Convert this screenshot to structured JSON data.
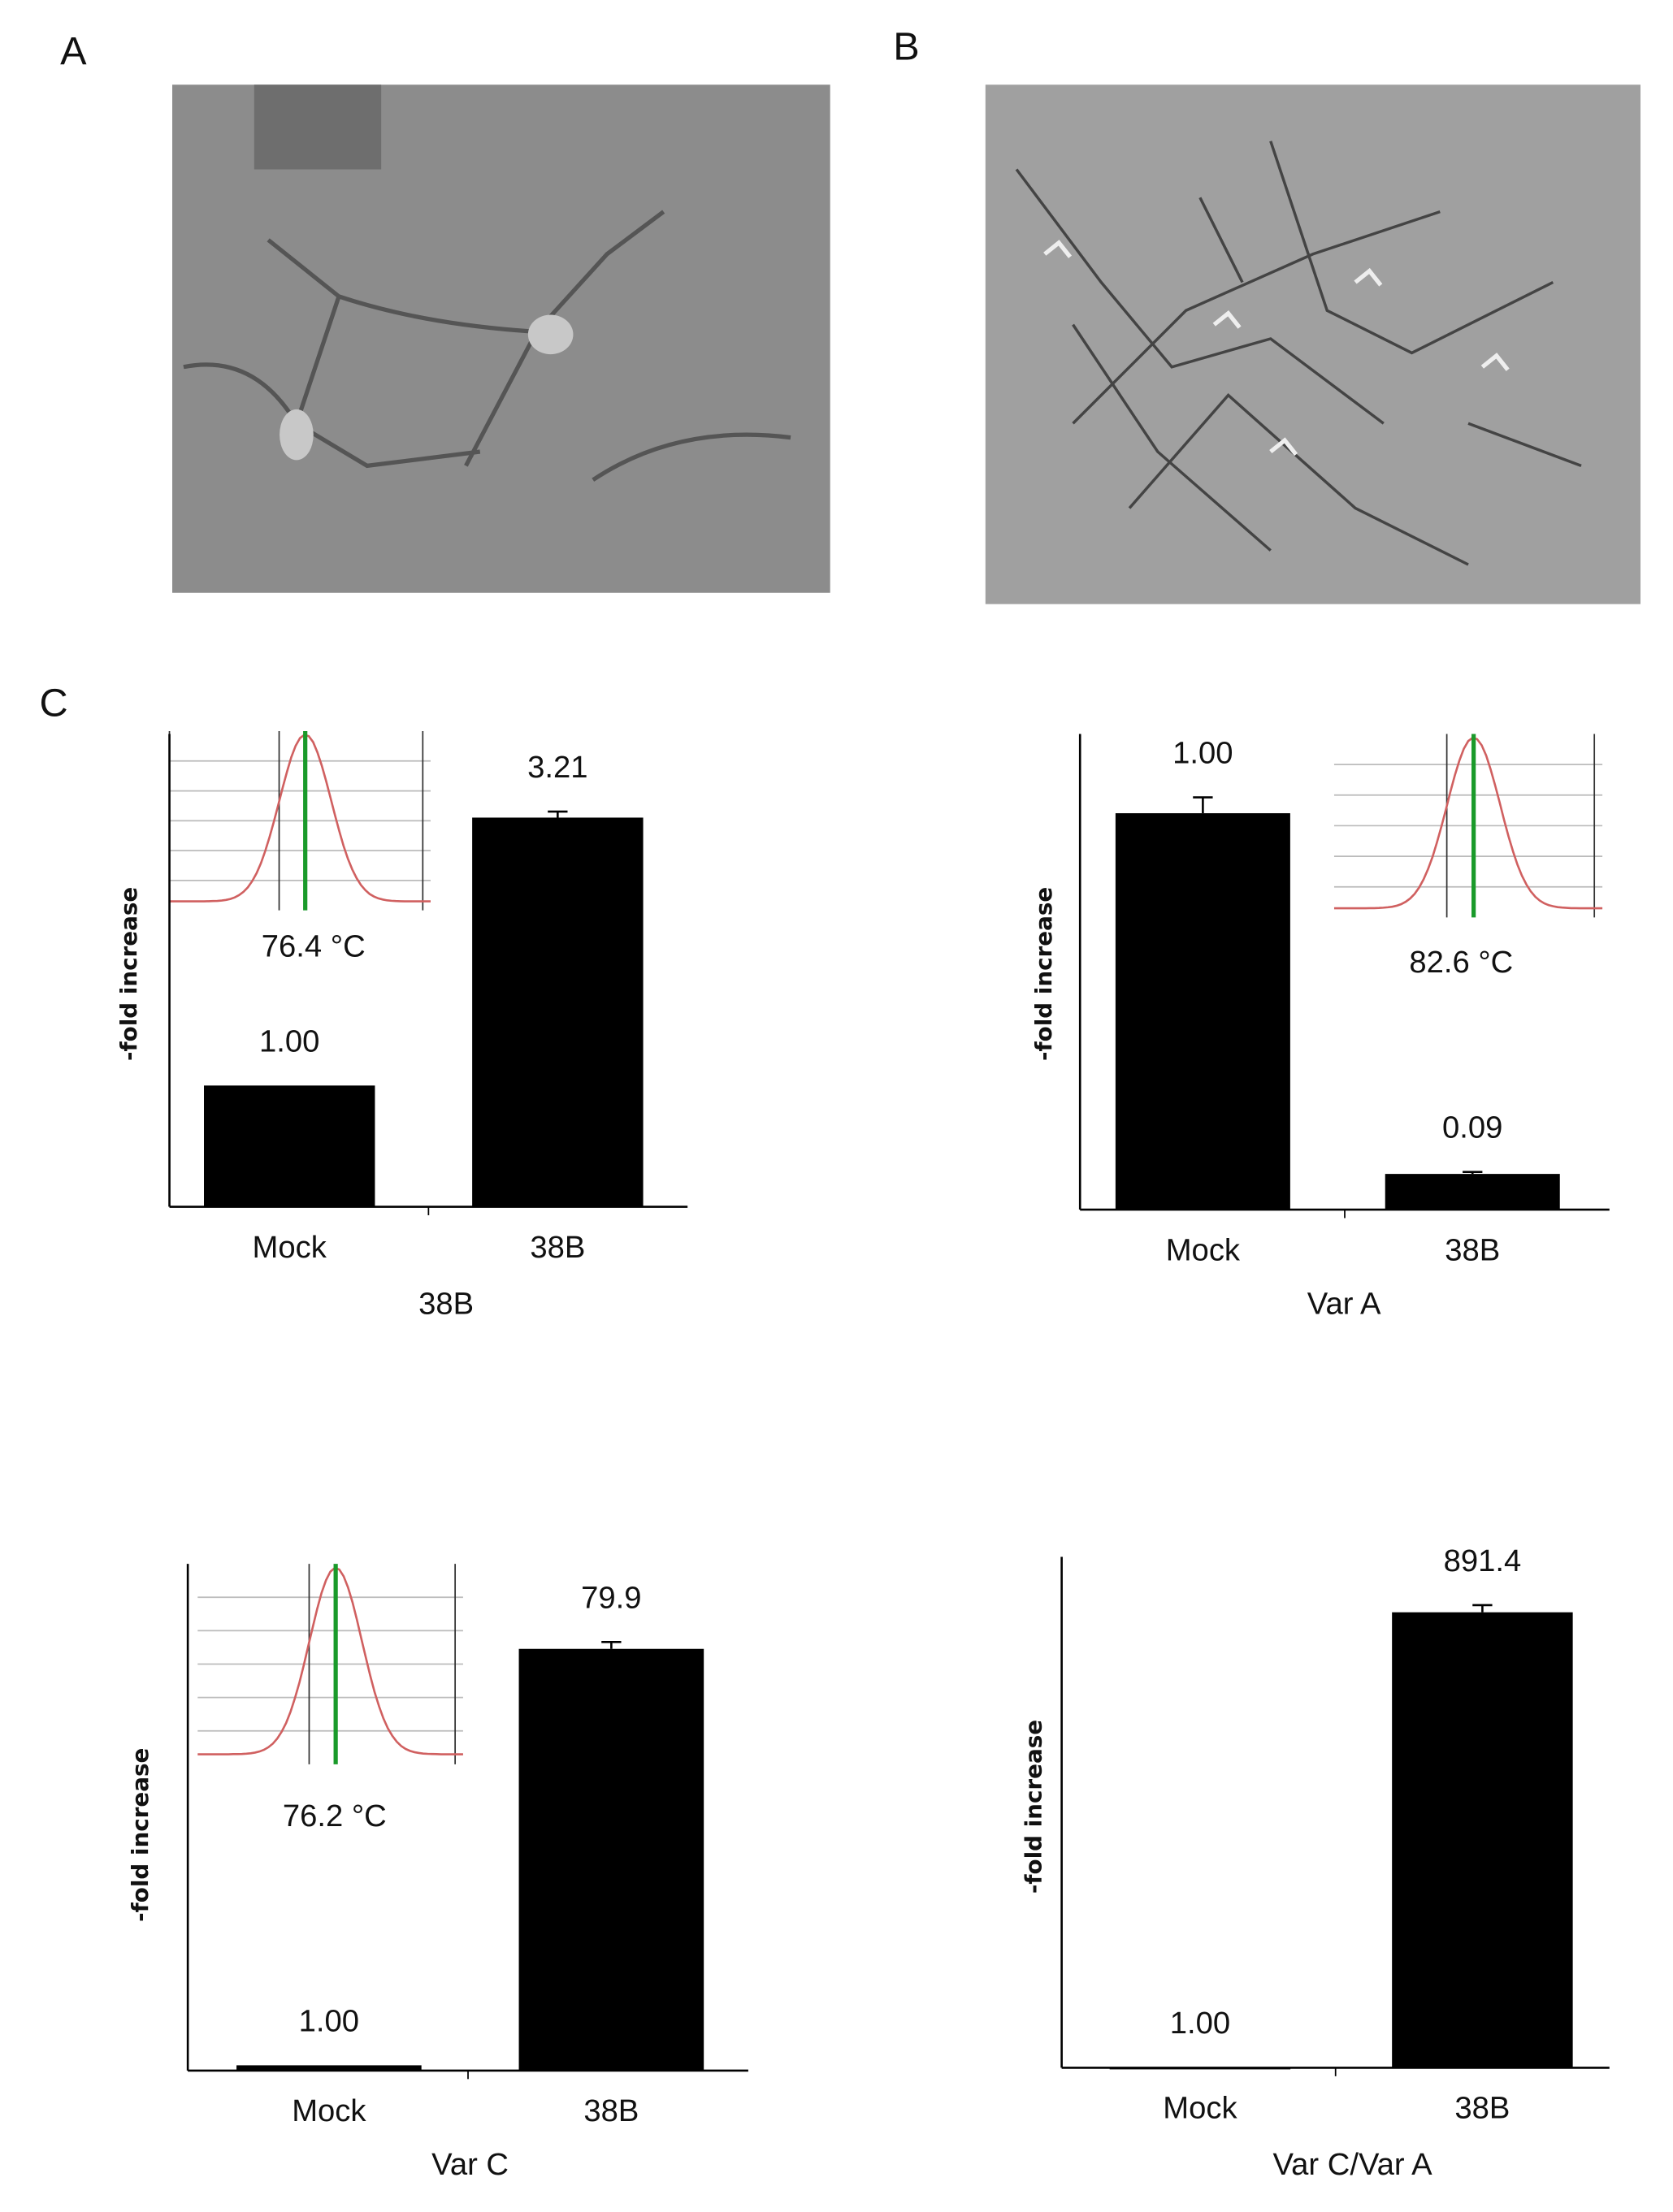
{
  "panel_labels": [
    "A",
    "B",
    "C"
  ],
  "chart_data": [
    {
      "type": "bar",
      "categories": [
        "Mock",
        "38B"
      ],
      "values": [
        1,
        3.21
      ],
      "value_labels": [
        "1.00",
        "3.21"
      ],
      "errors": [
        null,
        0.05
      ],
      "color": "#000000",
      "ylim": [
        0,
        3.9
      ],
      "ylabel": "-fold increase",
      "xlabel": "38B",
      "inset_label": "76.4 °C"
    },
    {
      "type": "bar",
      "categories": [
        "Mock",
        "38B"
      ],
      "values": [
        1,
        0.09
      ],
      "value_labels": [
        "1.00",
        "0.09"
      ],
      "errors": [
        0.04,
        0.005
      ],
      "color": "#000000",
      "ylim": [
        0,
        1.2
      ],
      "ylabel": "-fold increase",
      "xlabel": "Var A",
      "inset_label": "82.6 °C"
    },
    {
      "type": "bar",
      "categories": [
        "Mock",
        "38B"
      ],
      "values": [
        1,
        79.9
      ],
      "value_labels": [
        "1.00",
        "79.9"
      ],
      "errors": [
        null,
        1.3
      ],
      "color": "#000000",
      "ylim": [
        0,
        96
      ],
      "ylabel": "-fold increase",
      "xlabel": "Var C",
      "inset_label": "76.2 °C"
    },
    {
      "type": "bar",
      "categories": [
        "Mock",
        "38B"
      ],
      "values": [
        1,
        891.4
      ],
      "value_labels": [
        "1.00",
        "891.4"
      ],
      "errors": [
        null,
        14
      ],
      "color": "#000000",
      "ylim": [
        0,
        1000
      ],
      "ylabel": "-fold increase",
      "xlabel": "Var C/Var A"
    }
  ]
}
